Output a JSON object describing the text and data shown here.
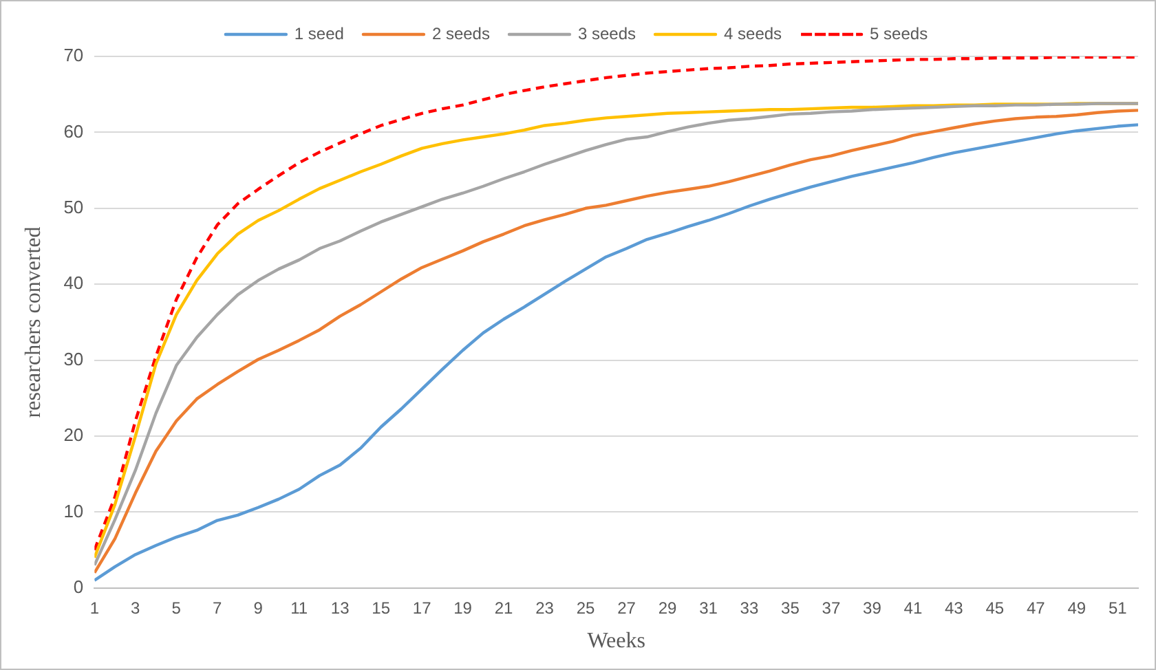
{
  "chart_data": {
    "type": "line",
    "xlabel": "Weeks",
    "ylabel": "researchers converted",
    "x": [
      1,
      2,
      3,
      4,
      5,
      6,
      7,
      8,
      9,
      10,
      11,
      12,
      13,
      14,
      15,
      16,
      17,
      18,
      19,
      20,
      21,
      22,
      23,
      24,
      25,
      26,
      27,
      28,
      29,
      30,
      31,
      32,
      33,
      34,
      35,
      36,
      37,
      38,
      39,
      40,
      41,
      42,
      43,
      44,
      45,
      46,
      47,
      48,
      49,
      50,
      51,
      52
    ],
    "xlim": [
      1,
      52
    ],
    "xticks": [
      1,
      3,
      5,
      7,
      9,
      11,
      13,
      15,
      17,
      19,
      21,
      23,
      25,
      27,
      29,
      31,
      33,
      35,
      37,
      39,
      41,
      43,
      45,
      47,
      49,
      51
    ],
    "series": [
      {
        "name": "1 seed",
        "color": "#5b9bd5",
        "values": [
          1,
          2.8,
          4.4,
          5.6,
          6.7,
          7.6,
          8.9,
          9.6,
          10.6,
          11.7,
          13,
          14.8,
          16.2,
          18.4,
          21.2,
          23.6,
          26.2,
          28.8,
          31.3,
          33.6,
          35.4,
          37,
          38.7,
          40.4,
          42,
          43.6,
          44.7,
          45.9,
          46.7,
          47.6,
          48.4,
          49.3,
          50.3,
          51.2,
          52,
          52.8,
          53.5,
          54.2,
          54.8,
          55.4,
          56,
          56.7,
          57.3,
          57.8,
          58.3,
          58.8,
          59.3,
          59.8,
          60.2,
          60.5,
          60.8,
          61
        ]
      },
      {
        "name": "2 seeds",
        "color": "#ed7d31",
        "values": [
          2,
          6.5,
          12.5,
          18,
          22,
          24.9,
          26.8,
          28.5,
          30.1,
          31.3,
          32.6,
          34,
          35.8,
          37.3,
          39,
          40.7,
          42.2,
          43.3,
          44.4,
          45.6,
          46.6,
          47.7,
          48.5,
          49.2,
          50,
          50.4,
          51,
          51.6,
          52.1,
          52.5,
          52.9,
          53.5,
          54.2,
          54.9,
          55.7,
          56.4,
          56.9,
          57.6,
          58.2,
          58.8,
          59.6,
          60.1,
          60.6,
          61.1,
          61.5,
          61.8,
          62,
          62.1,
          62.3,
          62.6,
          62.8,
          62.9
        ]
      },
      {
        "name": "3 seeds",
        "color": "#a5a5a5",
        "values": [
          3,
          9,
          15.5,
          23,
          29.3,
          33,
          36,
          38.6,
          40.5,
          42,
          43.2,
          44.7,
          45.7,
          47,
          48.2,
          49.2,
          50.2,
          51.2,
          52,
          52.9,
          53.9,
          54.8,
          55.8,
          56.7,
          57.6,
          58.4,
          59.1,
          59.4,
          60.1,
          60.7,
          61.2,
          61.6,
          61.8,
          62.1,
          62.4,
          62.5,
          62.7,
          62.8,
          63,
          63.1,
          63.2,
          63.3,
          63.4,
          63.5,
          63.5,
          63.6,
          63.6,
          63.7,
          63.7,
          63.8,
          63.8,
          63.8
        ]
      },
      {
        "name": "4 seeds",
        "color": "#ffc000",
        "values": [
          4,
          11,
          20,
          29.5,
          36,
          40.5,
          44,
          46.6,
          48.4,
          49.7,
          51.2,
          52.6,
          53.7,
          54.8,
          55.8,
          56.9,
          57.9,
          58.5,
          59,
          59.4,
          59.8,
          60.3,
          60.9,
          61.2,
          61.6,
          61.9,
          62.1,
          62.3,
          62.5,
          62.6,
          62.7,
          62.8,
          62.9,
          63,
          63,
          63.1,
          63.2,
          63.3,
          63.3,
          63.4,
          63.5,
          63.5,
          63.6,
          63.6,
          63.7,
          63.7,
          63.7,
          63.7,
          63.8,
          63.8,
          63.8,
          63.8
        ]
      },
      {
        "name": "5 seeds",
        "color": "#ff0000",
        "line_style": "dashed",
        "values": [
          5,
          12,
          22,
          30.5,
          38,
          43.5,
          47.8,
          50.6,
          52.5,
          54.3,
          56,
          57.4,
          58.6,
          59.8,
          60.9,
          61.7,
          62.5,
          63.1,
          63.6,
          64.3,
          65,
          65.5,
          66,
          66.4,
          66.8,
          67.2,
          67.5,
          67.8,
          68,
          68.2,
          68.4,
          68.5,
          68.7,
          68.8,
          69,
          69.1,
          69.2,
          69.3,
          69.4,
          69.5,
          69.6,
          69.6,
          69.7,
          69.7,
          69.8,
          69.8,
          69.8,
          69.9,
          69.9,
          69.9,
          69.9,
          69.9
        ]
      }
    ],
    "ylim": [
      0,
      70
    ],
    "yticks": [
      0,
      10,
      20,
      30,
      40,
      50,
      60,
      70
    ],
    "grid": "y",
    "legend": "top",
    "marker": "none",
    "line_style": "solid"
  }
}
